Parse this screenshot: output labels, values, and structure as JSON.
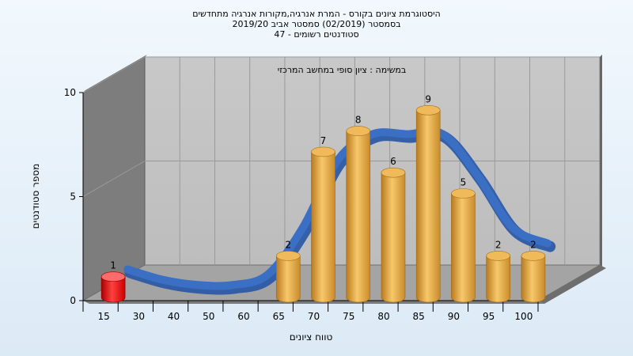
{
  "titles": {
    "line1": "היסטוגרמת ציונים בקורס - המרת אנרגיה,מקורות אנרגיה מתחדשים",
    "line2": "בסמסטר  (02/2019)  סמסטר אביב 2019/20",
    "line3": "סטודנטים רשומים - 47"
  },
  "chart_data": {
    "type": "bar",
    "title": "היסטוגרמת ציונים בקורס - המרת אנרגיה,מקורות אנרגיה מתחדשים",
    "subtitle": "בסמסטר  (02/2019)  סמסטר אביב 2019/20 | סטודנטים רשומים - 47",
    "panel_label": "במשימה : ציון סופי במחשב המרכזי",
    "xlabel": "טווח ציונים",
    "ylabel": "מספר סטודנטים",
    "categories": [
      "15",
      "30",
      "40",
      "50",
      "60",
      "65",
      "70",
      "75",
      "80",
      "85",
      "90",
      "95",
      "100"
    ],
    "series": [
      {
        "values": [
          1,
          0,
          0,
          0,
          0,
          2,
          7,
          8,
          6,
          9,
          5,
          2,
          2
        ]
      }
    ],
    "yticks": [
      0,
      5,
      10
    ],
    "ylim": [
      0,
      10
    ],
    "bar_colors": {
      "failing": "#dd1111",
      "passing": "#e8a43c"
    },
    "curve_color": "#3a6fc4",
    "grid": true
  }
}
